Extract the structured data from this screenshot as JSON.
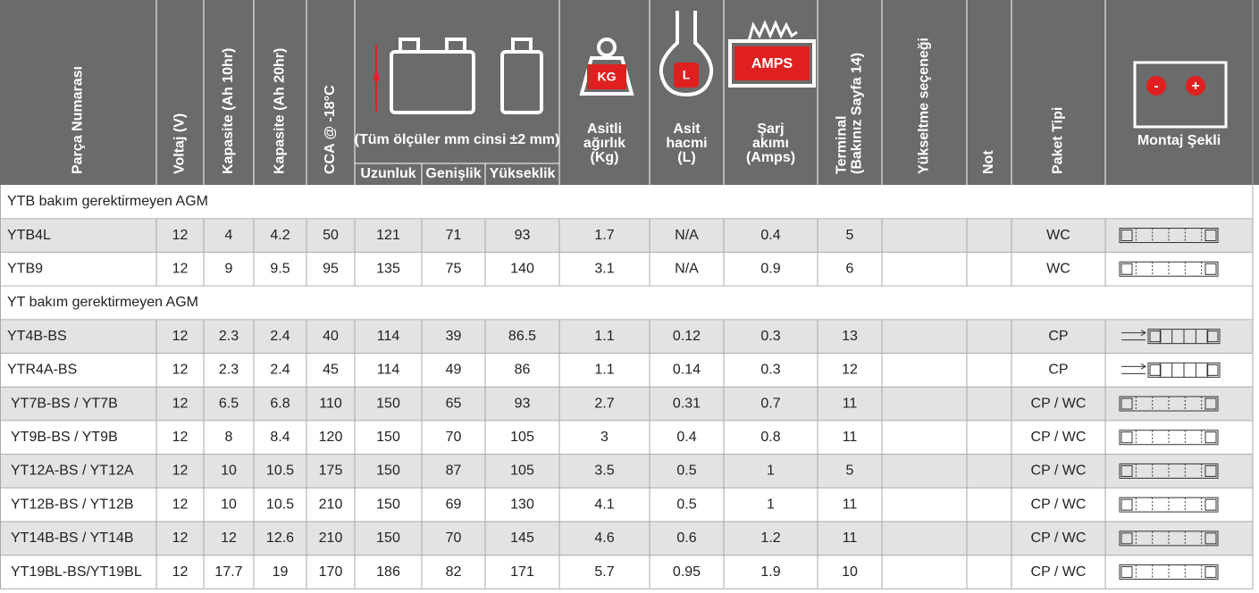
{
  "header": {
    "columns": [
      [
        "Parça Numarası"
      ],
      [
        "Voltaj (V)"
      ],
      [
        "Kapasite (Ah 10hr)"
      ],
      [
        "Kapasite (Ah 20hr)"
      ],
      [
        "CCA @ -18°C"
      ],
      [
        "Uzunluk"
      ],
      [
        "Genişlik"
      ],
      [
        "Yükseklik"
      ],
      [
        "Asitli",
        "ağırlık",
        "(Kg)"
      ],
      [
        "Asit",
        "hacmi",
        "(L)"
      ],
      [
        "Şarj",
        "akımı",
        "(Amps)"
      ],
      [
        "Terminal",
        "(Bakınız Sayfa 14)"
      ],
      [
        "Yükseltme seçeneği"
      ],
      [
        "Not"
      ],
      [
        "Paket Tipi"
      ],
      [
        "Montaj Şekli"
      ]
    ],
    "dimension_note": [
      "(Tüm ölçüler mm cinsi",
      "±2 mm)"
    ],
    "icons": {
      "h": "H",
      "kg": "KG",
      "l": "L",
      "amps": "AMPS",
      "minus": "-",
      "plus": "+"
    }
  },
  "table": {
    "sections": [
      {
        "title": "YTB bakım gerektirmeyen AGM",
        "rows": [
          [
            "YTB4L",
            12,
            4,
            4.2,
            50,
            121,
            71,
            93,
            1.7,
            "N/A",
            0.4,
            5,
            "WC"
          ],
          [
            "YTB9",
            12,
            9,
            9.5,
            95,
            135,
            75,
            140,
            3.1,
            "N/A",
            0.9,
            6,
            "WC"
          ]
        ]
      },
      {
        "title": "YT bakım gerektirmeyen AGM",
        "rows": [
          [
            "YT4B-BS",
            12,
            2.3,
            2.4,
            40,
            114,
            39,
            86.5,
            1.1,
            0.12,
            0.3,
            13,
            "CP"
          ],
          [
            "YTR4A-BS",
            12,
            2.3,
            2.4,
            45,
            114,
            49,
            86,
            1.1,
            0.14,
            0.3,
            12,
            "CP"
          ],
          [
            "YT7B-BS / YT7B",
            12,
            6.5,
            6.8,
            110,
            150,
            65,
            93,
            2.7,
            0.31,
            0.7,
            11,
            "CP / WC"
          ],
          [
            "YT9B-BS / YT9B",
            12,
            8,
            8.4,
            120,
            150,
            70,
            105,
            3,
            0.4,
            0.8,
            11,
            "CP / WC"
          ],
          [
            "YT12A-BS / YT12A",
            12,
            10,
            10.5,
            175,
            150,
            87,
            105,
            3.5,
            0.5,
            1,
            5,
            "CP / WC"
          ],
          [
            "YT12B-BS / YT12B",
            12,
            10,
            10.5,
            210,
            150,
            69,
            130,
            4.1,
            0.5,
            1,
            11,
            "CP / WC"
          ],
          [
            "YT14B-BS / YT14B",
            12,
            12,
            12.6,
            210,
            150,
            70,
            145,
            4.6,
            0.6,
            1.2,
            11,
            "CP / WC"
          ],
          [
            "YT19BL-BS/YT19BL",
            12,
            17.7,
            19,
            170,
            186,
            82,
            171,
            5.7,
            0.95,
            1.9,
            10,
            "CP / WC"
          ]
        ]
      }
    ]
  }
}
